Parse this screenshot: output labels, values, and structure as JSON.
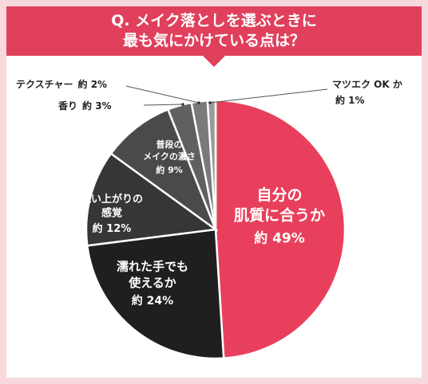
{
  "header": {
    "line1": "Q. メイク落としを選ぶときに",
    "line2": "最も気にかけている点は？"
  },
  "colors": {
    "accent": "#e0405c",
    "frame": "#f7d8dd"
  },
  "chart_data": {
    "type": "pie",
    "unit": "%",
    "slices": [
      {
        "label": "自分の\n肌質に合うか",
        "pct_text": "約 49%",
        "value": 49,
        "color": "#e8405c",
        "text_color": "#ffffff",
        "inside": true
      },
      {
        "label": "濡れた手でも\n使えるか",
        "pct_text": "約 24%",
        "value": 24,
        "color": "#1f1f1f",
        "text_color": "#ffffff",
        "inside": true
      },
      {
        "label": "洗い上がりの\n感覚",
        "pct_text": "約 12%",
        "value": 12,
        "color": "#363636",
        "text_color": "#ffffff",
        "inside": true
      },
      {
        "label": "普段の\nメイクの濃さ",
        "pct_text": "約 9%",
        "value": 9,
        "color": "#4a4a4a",
        "text_color": "#ffffff",
        "inside": true
      },
      {
        "label": "香り",
        "pct_text": "約 3%",
        "value": 3,
        "color": "#606060",
        "text_color": "#222222",
        "inside": false
      },
      {
        "label": "テクスチャー",
        "pct_text": "約 2%",
        "value": 2,
        "color": "#7a7a7a",
        "text_color": "#222222",
        "inside": false
      },
      {
        "label": "マツエク OK か",
        "pct_text": "約 1%",
        "value": 1,
        "color": "#9a9a9a",
        "text_color": "#222222",
        "inside": false
      }
    ]
  }
}
